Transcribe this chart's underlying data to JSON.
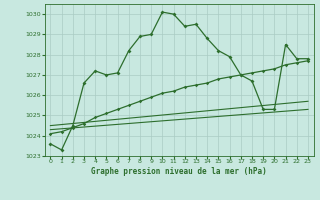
{
  "title": "Graphe pression niveau de la mer (hPa)",
  "bg_color": "#c8e8e0",
  "grid_color": "#aaccc4",
  "line_color": "#2d6e2d",
  "xlim": [
    -0.5,
    23.5
  ],
  "ylim": [
    1023,
    1030.5
  ],
  "yticks": [
    1023,
    1024,
    1025,
    1026,
    1027,
    1028,
    1029,
    1030
  ],
  "xticks": [
    0,
    1,
    2,
    3,
    4,
    5,
    6,
    7,
    8,
    9,
    10,
    11,
    12,
    13,
    14,
    15,
    16,
    17,
    18,
    19,
    20,
    21,
    22,
    23
  ],
  "series1_x": [
    0,
    1,
    2,
    3,
    4,
    5,
    6,
    7,
    8,
    9,
    10,
    11,
    12,
    13,
    14,
    15,
    16,
    17,
    18,
    19,
    20,
    21,
    22,
    23
  ],
  "series1_y": [
    1023.6,
    1023.3,
    1024.5,
    1026.6,
    1027.2,
    1027.0,
    1027.1,
    1028.2,
    1028.9,
    1029.0,
    1030.1,
    1030.0,
    1029.4,
    1029.5,
    1028.8,
    1028.2,
    1027.9,
    1027.0,
    1026.7,
    1025.3,
    1025.3,
    1028.5,
    1027.8,
    1027.8
  ],
  "series2_x": [
    0,
    1,
    2,
    3,
    4,
    5,
    6,
    7,
    8,
    9,
    10,
    11,
    12,
    13,
    14,
    15,
    16,
    17,
    18,
    19,
    20,
    21,
    22,
    23
  ],
  "series2_y": [
    1024.1,
    1024.2,
    1024.4,
    1024.6,
    1024.9,
    1025.1,
    1025.3,
    1025.5,
    1025.7,
    1025.9,
    1026.1,
    1026.2,
    1026.4,
    1026.5,
    1026.6,
    1026.8,
    1026.9,
    1027.0,
    1027.1,
    1027.2,
    1027.3,
    1027.5,
    1027.6,
    1027.7
  ],
  "series3_x": [
    0,
    23
  ],
  "series3_y": [
    1024.3,
    1025.3
  ],
  "series4_x": [
    0,
    23
  ],
  "series4_y": [
    1024.5,
    1025.7
  ]
}
